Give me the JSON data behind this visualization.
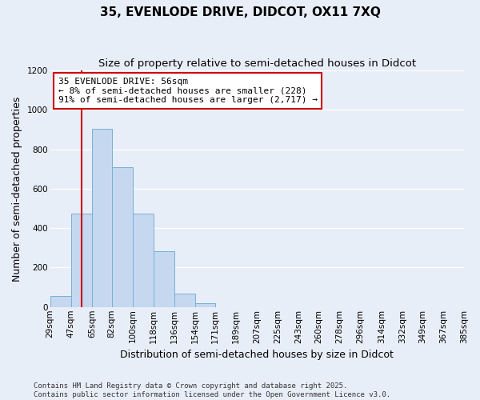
{
  "title_line1": "35, EVENLODE DRIVE, DIDCOT, OX11 7XQ",
  "title_line2": "Size of property relative to semi-detached houses in Didcot",
  "xlabel": "Distribution of semi-detached houses by size in Didcot",
  "ylabel": "Number of semi-detached properties",
  "bin_labels": [
    "29sqm",
    "47sqm",
    "65sqm",
    "82sqm",
    "100sqm",
    "118sqm",
    "136sqm",
    "154sqm",
    "171sqm",
    "189sqm",
    "207sqm",
    "225sqm",
    "243sqm",
    "260sqm",
    "278sqm",
    "296sqm",
    "314sqm",
    "332sqm",
    "349sqm",
    "367sqm",
    "385sqm"
  ],
  "bin_edges": [
    29,
    47,
    65,
    82,
    100,
    118,
    136,
    154,
    171,
    189,
    207,
    225,
    243,
    260,
    278,
    296,
    314,
    332,
    349,
    367,
    385
  ],
  "bar_values": [
    55,
    475,
    905,
    710,
    475,
    285,
    70,
    20,
    0,
    0,
    0,
    0,
    0,
    0,
    0,
    0,
    0,
    0,
    0,
    0
  ],
  "bar_color": "#c5d8f0",
  "bar_edge_color": "#7aafd4",
  "property_size": 56,
  "property_line_color": "#cc0000",
  "annotation_text": "35 EVENLODE DRIVE: 56sqm\n← 8% of semi-detached houses are smaller (228)\n91% of semi-detached houses are larger (2,717) →",
  "annotation_box_color": "#ffffff",
  "annotation_box_edge": "#cc0000",
  "ylim": [
    0,
    1200
  ],
  "yticks": [
    0,
    200,
    400,
    600,
    800,
    1000,
    1200
  ],
  "bg_color": "#e8eef8",
  "grid_color": "#ffffff",
  "footer_text": "Contains HM Land Registry data © Crown copyright and database right 2025.\nContains public sector information licensed under the Open Government Licence v3.0.",
  "title_fontsize": 11,
  "subtitle_fontsize": 9.5,
  "axis_label_fontsize": 9,
  "tick_fontsize": 7.5,
  "footer_fontsize": 6.5
}
